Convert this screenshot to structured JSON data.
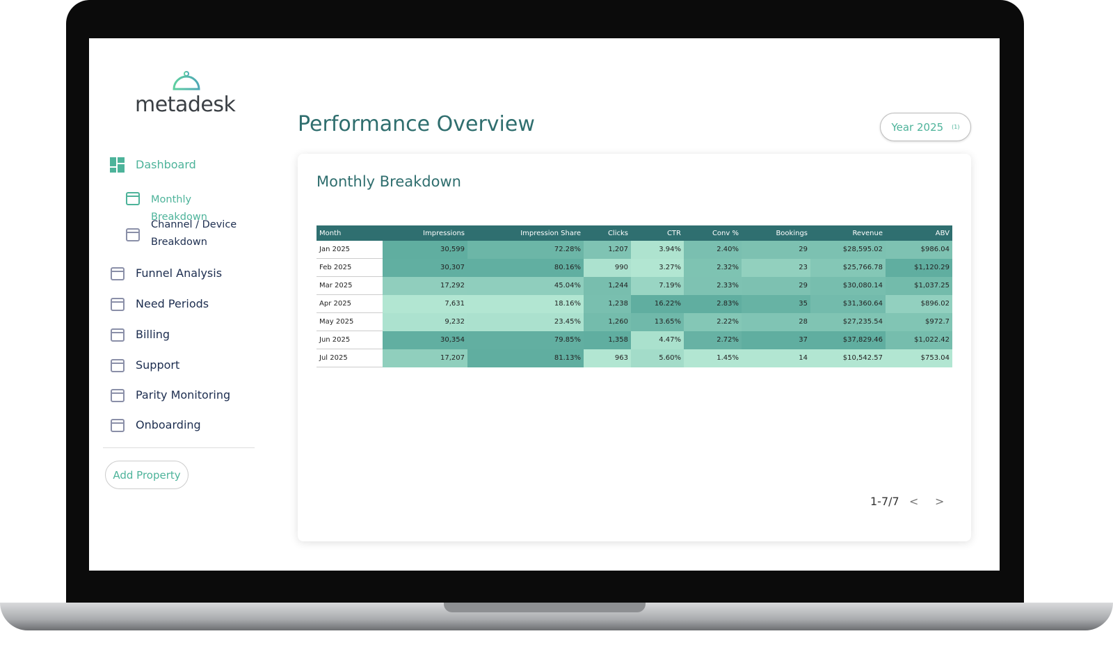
{
  "sidebar": {
    "logo": "metadesk",
    "nav": [
      {
        "label": "Dashboard",
        "active": true,
        "level": 0
      },
      {
        "label": "Monthly Breakdown",
        "active": true,
        "level": 1
      },
      {
        "label": "Channel / Device Breakdown",
        "active": false,
        "level": 1
      },
      {
        "label": "Funnel Analysis",
        "active": false,
        "level": 0
      },
      {
        "label": "Need Periods",
        "active": false,
        "level": 0
      },
      {
        "label": "Billing",
        "active": false,
        "level": 0
      },
      {
        "label": "Support",
        "active": false,
        "level": 0
      },
      {
        "label": "Parity Monitoring",
        "active": false,
        "level": 0
      },
      {
        "label": "Onboarding",
        "active": false,
        "level": 0
      }
    ],
    "button": "Add Property"
  },
  "header": {
    "title": "Performance Overview",
    "filter": "Year 2025",
    "filter_count": "(1)"
  },
  "card": {
    "title": "Monthly Breakdown"
  },
  "table": {
    "columns": [
      "Month",
      "Impressions",
      "Impression Share",
      "Clicks",
      "CTR",
      "Conv %",
      "Bookings",
      "Revenue",
      "ABV"
    ],
    "rows": [
      [
        "Jan 2025",
        "30,599",
        "72.28%",
        "1,207",
        "3.94%",
        "2.40%",
        "29",
        "$28,595.02",
        "$986.04"
      ],
      [
        "Feb 2025",
        "30,307",
        "80.16%",
        "990",
        "3.27%",
        "2.32%",
        "23",
        "$25,766.78",
        "$1,120.29"
      ],
      [
        "Mar 2025",
        "17,292",
        "45.04%",
        "1,244",
        "7.19%",
        "2.33%",
        "29",
        "$30,080.14",
        "$1,037.25"
      ],
      [
        "Apr 2025",
        "7,631",
        "18.16%",
        "1,238",
        "16.22%",
        "2.83%",
        "35",
        "$31,360.64",
        "$896.02"
      ],
      [
        "May 2025",
        "9,232",
        "23.45%",
        "1,260",
        "13.65%",
        "2.22%",
        "28",
        "$27,235.54",
        "$972.7"
      ],
      [
        "Jun 2025",
        "30,354",
        "79.85%",
        "1,358",
        "4.47%",
        "2.72%",
        "37",
        "$37,829.46",
        "$1,022.42"
      ],
      [
        "Jul 2025",
        "17,207",
        "81.13%",
        "963",
        "5.60%",
        "1.45%",
        "14",
        "$10,542.57",
        "$753.04"
      ]
    ]
  },
  "pagination": {
    "range": "1-7/7",
    "prev": "<",
    "next": ">"
  }
}
